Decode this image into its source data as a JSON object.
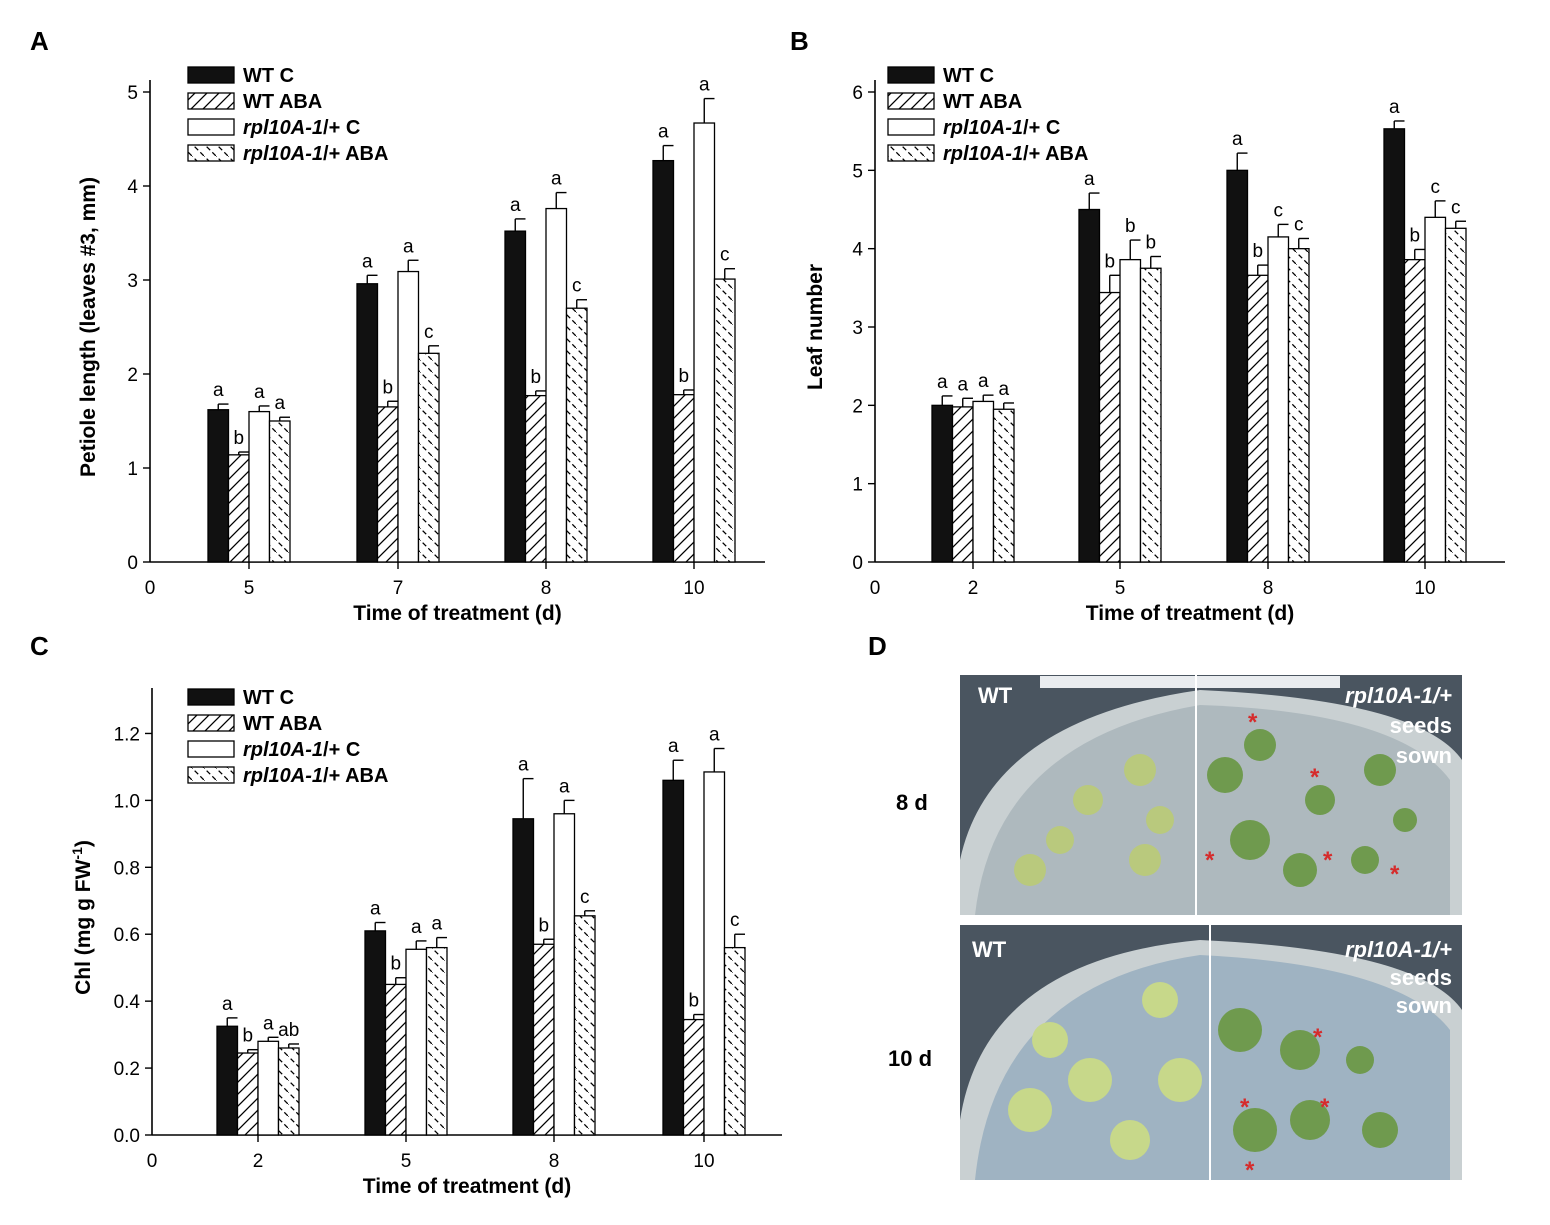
{
  "colors": {
    "axis": "#000000",
    "bar_stroke": "#000000",
    "solid_fill": "#111111",
    "open_fill": "#ffffff",
    "star": "#d62b2b"
  },
  "legend": [
    "WT C",
    "WT ABA",
    "rpl10A-1/+ C",
    "rpl10A-1/+ ABA"
  ],
  "chart_data": [
    {
      "panel": "A",
      "type": "bar",
      "ylabel": "Petiole length (leaves #3, mm)",
      "xlabel": "Time of treatment (d)",
      "ylim": [
        0,
        5
      ],
      "yticks": [
        0,
        1,
        2,
        3,
        4,
        5
      ],
      "x_zero_label": "0",
      "categories": [
        "5",
        "7",
        "8",
        "10"
      ],
      "series": [
        {
          "name": "WT C",
          "style": "solid",
          "values": [
            1.62,
            2.96,
            3.52,
            4.27
          ],
          "errors": [
            0.06,
            0.09,
            0.13,
            0.16
          ],
          "letters": [
            "a",
            "a",
            "a",
            "a"
          ]
        },
        {
          "name": "WT ABA",
          "style": "hatch-right",
          "values": [
            1.14,
            1.65,
            1.77,
            1.78
          ],
          "errors": [
            0.03,
            0.06,
            0.05,
            0.05
          ],
          "letters": [
            "b",
            "b",
            "b",
            "b"
          ]
        },
        {
          "name": "rpl10A-1/+ C",
          "style": "open",
          "values": [
            1.6,
            3.09,
            3.76,
            4.67
          ],
          "errors": [
            0.06,
            0.12,
            0.17,
            0.26
          ],
          "letters": [
            "a",
            "a",
            "a",
            "a"
          ]
        },
        {
          "name": "rpl10A-1/+ ABA",
          "style": "hatch-left",
          "values": [
            1.5,
            2.22,
            2.7,
            3.01
          ],
          "errors": [
            0.04,
            0.08,
            0.09,
            0.11
          ],
          "letters": [
            "a",
            "c",
            "c",
            "c"
          ]
        }
      ]
    },
    {
      "panel": "B",
      "type": "bar",
      "ylabel": "Leaf number",
      "xlabel": "Time of treatment (d)",
      "ylim": [
        0,
        6
      ],
      "yticks": [
        0,
        1,
        2,
        3,
        4,
        5,
        6
      ],
      "x_zero_label": "0",
      "categories": [
        "2",
        "5",
        "8",
        "10"
      ],
      "series": [
        {
          "name": "WT C",
          "style": "solid",
          "values": [
            2.0,
            4.5,
            5.0,
            5.53
          ],
          "errors": [
            0.12,
            0.21,
            0.22,
            0.1
          ],
          "letters": [
            "a",
            "a",
            "a",
            "a"
          ]
        },
        {
          "name": "WT ABA",
          "style": "hatch-right",
          "values": [
            1.98,
            3.44,
            3.66,
            3.86
          ],
          "errors": [
            0.11,
            0.22,
            0.13,
            0.13
          ],
          "letters": [
            "a",
            "b",
            "b",
            "b"
          ]
        },
        {
          "name": "rpl10A-1/+ C",
          "style": "open",
          "values": [
            2.05,
            3.86,
            4.15,
            4.4
          ],
          "errors": [
            0.08,
            0.25,
            0.16,
            0.21
          ],
          "letters": [
            "a",
            "b",
            "c",
            "c"
          ]
        },
        {
          "name": "rpl10A-1/+ ABA",
          "style": "hatch-left",
          "values": [
            1.95,
            3.75,
            4.0,
            4.26
          ],
          "errors": [
            0.08,
            0.15,
            0.13,
            0.09
          ],
          "letters": [
            "a",
            "b",
            "c",
            "c"
          ]
        }
      ]
    },
    {
      "panel": "C",
      "type": "bar",
      "ylabel": "Chl (mg g FW",
      "ylabel_sup": "-1",
      "ylabel_end": ")",
      "xlabel": "Time of treatment (d)",
      "ylim": [
        0,
        1.3
      ],
      "yticks": [
        0.0,
        0.2,
        0.4,
        0.6,
        0.8,
        1.0,
        1.2
      ],
      "ytick_labels": [
        "0.0",
        "0.2",
        "0.4",
        "0.6",
        "0.8",
        "1.0",
        "1.2"
      ],
      "x_zero_label": "0",
      "categories": [
        "2",
        "5",
        "8",
        "10"
      ],
      "series": [
        {
          "name": "WT C",
          "style": "solid",
          "values": [
            0.325,
            0.61,
            0.945,
            1.06
          ],
          "errors": [
            0.025,
            0.025,
            0.12,
            0.06
          ],
          "letters": [
            "a",
            "a",
            "a",
            "a"
          ]
        },
        {
          "name": "WT ABA",
          "style": "hatch-right",
          "values": [
            0.245,
            0.45,
            0.57,
            0.345
          ],
          "errors": [
            0.01,
            0.02,
            0.015,
            0.015
          ],
          "letters": [
            "b",
            "b",
            "b",
            "b"
          ]
        },
        {
          "name": "rpl10A-1/+ C",
          "style": "open",
          "values": [
            0.28,
            0.555,
            0.96,
            1.085
          ],
          "errors": [
            0.012,
            0.025,
            0.04,
            0.07
          ],
          "letters": [
            "a",
            "a",
            "a",
            "a"
          ]
        },
        {
          "name": "rpl10A-1/+ ABA",
          "style": "hatch-left",
          "values": [
            0.26,
            0.56,
            0.655,
            0.56
          ],
          "errors": [
            0.012,
            0.03,
            0.015,
            0.04
          ],
          "letters": [
            "ab",
            "a",
            "c",
            "c"
          ]
        }
      ]
    }
  ],
  "panel_letters": [
    "A",
    "B",
    "C",
    "D"
  ],
  "photos": {
    "rows": [
      {
        "day": "8 d",
        "left": "WT",
        "right_line1": "rpl10A-1/+",
        "right_line2": "seeds",
        "right_line3": "sown",
        "stars": "*"
      },
      {
        "day": "10 d",
        "left": "WT",
        "right_line1": "rpl10A-1/+",
        "right_line2": "seeds",
        "right_line3": "sown",
        "stars": "*"
      }
    ]
  }
}
